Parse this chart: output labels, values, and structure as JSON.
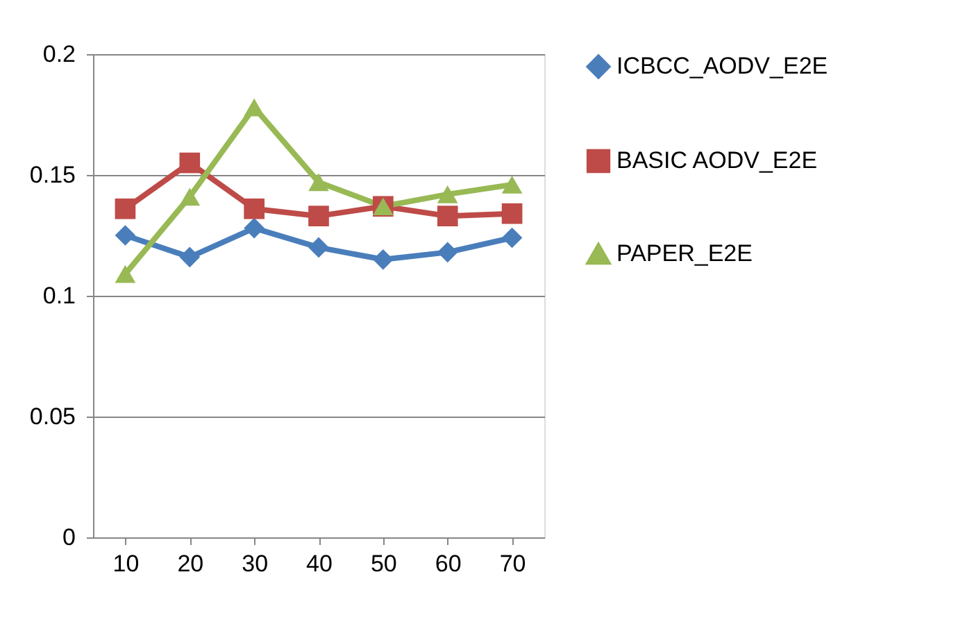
{
  "chart_data": {
    "type": "line",
    "categories": [
      "10",
      "20",
      "30",
      "40",
      "50",
      "60",
      "70"
    ],
    "series": [
      {
        "name": "ICBCC_AODV_E2E",
        "color": "#4a7ebb",
        "marker": "diamond",
        "values": [
          0.125,
          0.116,
          0.128,
          0.12,
          0.115,
          0.118,
          0.124
        ]
      },
      {
        "name": "BASIC AODV_E2E",
        "color": "#be4b48",
        "marker": "square",
        "values": [
          0.136,
          0.155,
          0.136,
          0.133,
          0.137,
          0.133,
          0.134
        ]
      },
      {
        "name": "PAPER_E2E",
        "color": "#98b954",
        "marker": "triangle",
        "values": [
          0.109,
          0.141,
          0.178,
          0.147,
          0.137,
          0.142,
          0.146
        ]
      }
    ],
    "ylim": [
      0,
      0.2
    ],
    "yticks": [
      0,
      0.05,
      0.1,
      0.15,
      0.2
    ],
    "grid": "y",
    "legend": "right",
    "line_style": "solid"
  }
}
